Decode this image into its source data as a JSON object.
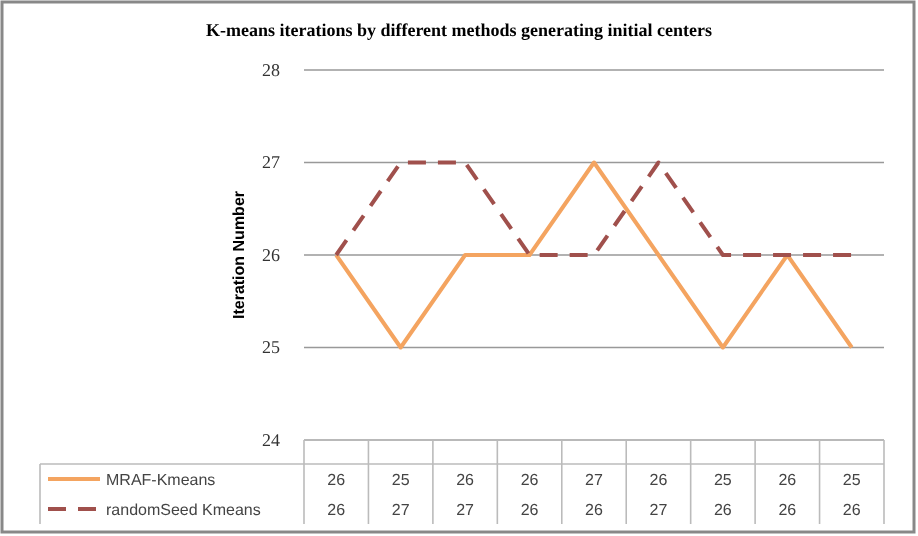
{
  "chart_data": {
    "type": "line",
    "title": "K-means iterations by different methods generating initial centers",
    "ylabel": "Iteration Number",
    "categories": [
      null,
      null,
      null,
      null,
      null,
      null,
      null,
      null,
      null
    ],
    "series": [
      {
        "name": "MRAF-Kmeans",
        "color": "#f4a460",
        "line_style": "solid",
        "values": [
          26,
          25,
          26,
          26,
          27,
          26,
          25,
          26,
          25
        ]
      },
      {
        "name": "randomSeed Kmeans",
        "color": "#a0504c",
        "line_style": "dashed",
        "values": [
          26,
          27,
          27,
          26,
          26,
          27,
          26,
          26,
          26
        ]
      }
    ],
    "ylim": [
      24,
      28
    ],
    "yticks": [
      24,
      25,
      26,
      27,
      28
    ],
    "grid": "y",
    "legend": "bottom",
    "tick_labels": "y",
    "marker": "none",
    "data_labels": true
  }
}
